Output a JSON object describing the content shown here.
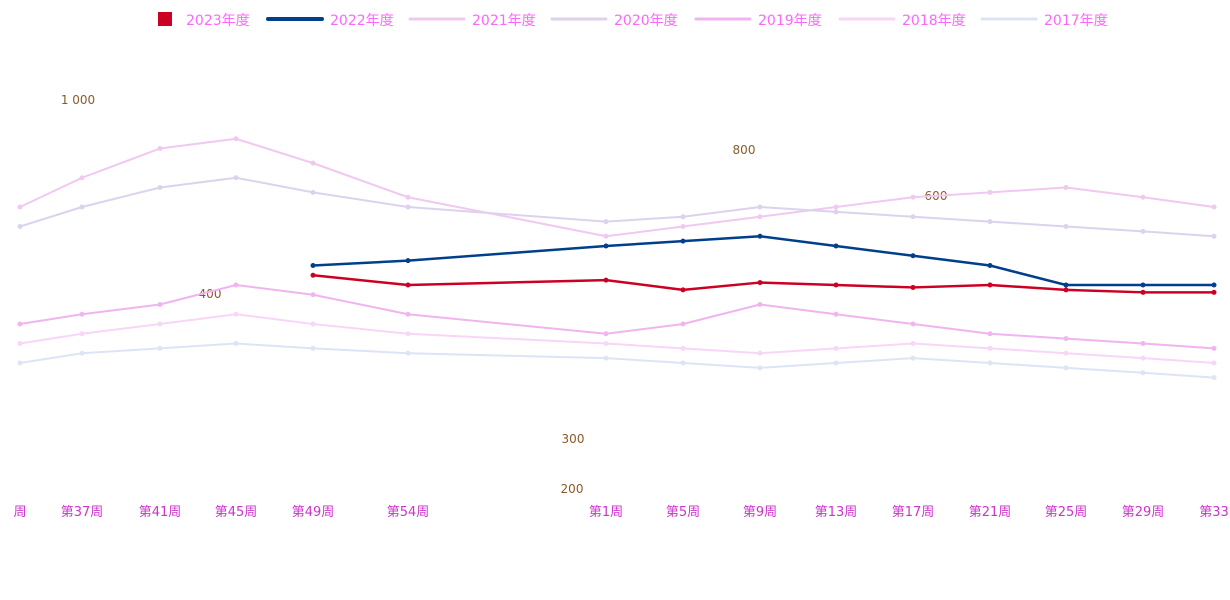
{
  "chart_data": {
    "type": "line",
    "title": "",
    "xlabel": "",
    "ylabel": "",
    "legend_position": "top",
    "categories": [
      "周",
      "第37周",
      "第41周",
      "第45周",
      "第49周",
      "第54周",
      "第1周",
      "第5周",
      "第9周",
      "第13周",
      "第17周",
      "第21周",
      "第25周",
      "第29周",
      "第33"
    ],
    "y_tick_labels": [
      "1 000",
      "800",
      "600",
      "400",
      "300",
      "200"
    ],
    "series": [
      {
        "name": "2023年度",
        "color": "#cc0022",
        "values": [
          null,
          null,
          null,
          null,
          620,
          600,
          610,
          590,
          605,
          600,
          595,
          600,
          590,
          585,
          585
        ]
      },
      {
        "name": "2022年度",
        "color": "#003f8a",
        "values": [
          null,
          null,
          null,
          null,
          640,
          650,
          680,
          690,
          700,
          680,
          660,
          640,
          600,
          600,
          600
        ]
      },
      {
        "name": "2021年度",
        "color": "#f0c8f0",
        "values": [
          760,
          820,
          880,
          900,
          850,
          780,
          700,
          720,
          740,
          760,
          780,
          790,
          800,
          780,
          760
        ]
      },
      {
        "name": "2020年度",
        "color": "#dcd2ee",
        "values": [
          720,
          760,
          800,
          820,
          790,
          760,
          730,
          740,
          760,
          750,
          740,
          730,
          720,
          710,
          700
        ]
      },
      {
        "name": "2019年度",
        "color": "#f0b4f0",
        "values": [
          520,
          540,
          560,
          600,
          580,
          540,
          500,
          520,
          560,
          540,
          520,
          500,
          490,
          480,
          470
        ]
      },
      {
        "name": "2018年度",
        "color": "#f8d6f8",
        "values": [
          480,
          500,
          520,
          540,
          520,
          500,
          480,
          470,
          460,
          470,
          480,
          470,
          460,
          450,
          440
        ]
      },
      {
        "name": "2017年度",
        "color": "#dde4f6",
        "values": [
          440,
          460,
          470,
          480,
          470,
          460,
          450,
          440,
          430,
          440,
          450,
          440,
          430,
          420,
          410
        ]
      }
    ]
  }
}
